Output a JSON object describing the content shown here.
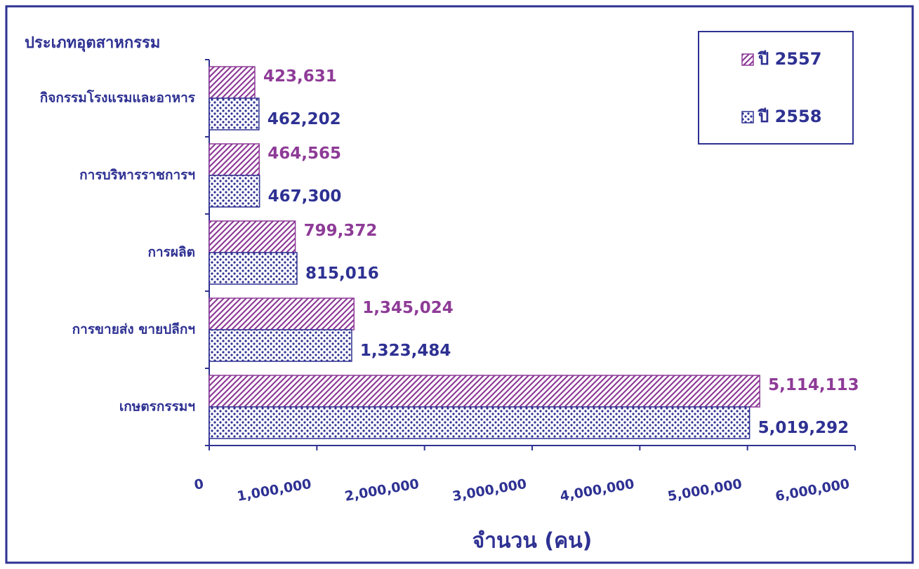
{
  "chart_data": {
    "type": "hbar",
    "ylabel": "ประเภทอุตสาหกรรม",
    "xlabel": "จำนวน (คน)",
    "categories": [
      "กิจกรรมโรงแรมและอาหาร",
      "การบริหารราชการฯ",
      "การผลิต",
      "การขายส่ง ขายปลีกฯ",
      "เกษตรกรรมฯ"
    ],
    "series": [
      {
        "name": "ปี 2557",
        "color": "#8e3b97",
        "values": [
          423631,
          464565,
          799372,
          1345024,
          5114113
        ],
        "value_labels": [
          "423,631",
          "464,565",
          "799,372",
          "1,345,024",
          "5,114,113"
        ]
      },
      {
        "name": "ปี 2558",
        "color": "#2e3192",
        "values": [
          462202,
          467300,
          815016,
          1323484,
          5019292
        ],
        "value_labels": [
          "462,202",
          "467,300",
          "815,016",
          "1,323,484",
          "5,019,292"
        ]
      }
    ],
    "xlim": [
      0,
      6000000
    ],
    "xticks": [
      0,
      {
        "value": 1000000,
        "label": "1,000,000"
      },
      {
        "value": 2000000,
        "label": "2,000,000"
      },
      {
        "value": 3000000,
        "label": "3,000,000"
      },
      {
        "value": 4000000,
        "label": "4,000,000"
      },
      {
        "value": 5000000,
        "label": "5,000,000"
      },
      {
        "value": 6000000,
        "label": "6,000,000"
      }
    ],
    "legend": "top-right"
  }
}
